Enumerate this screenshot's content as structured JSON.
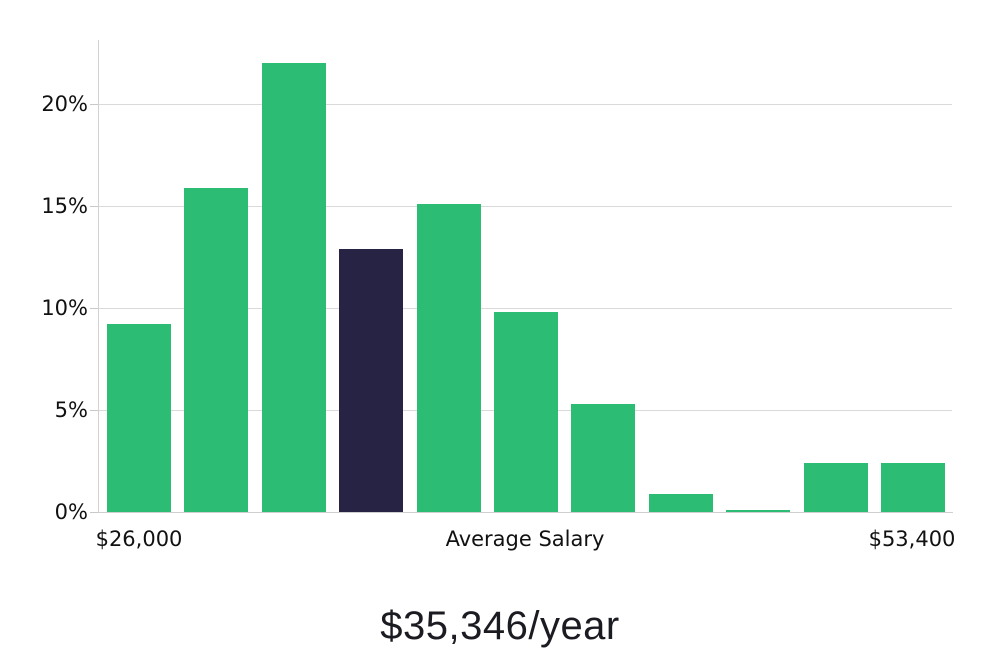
{
  "page": {
    "background": "#ffffff"
  },
  "chart_data": {
    "type": "bar",
    "subtype": "histogram",
    "title": "$35,346/year",
    "xlabel": "",
    "ylabel": "",
    "x_axis_labels": {
      "left": "$26,000",
      "center": "Average Salary",
      "right": "$53,400"
    },
    "y_ticks": [
      {
        "value": 0,
        "label": "0%"
      },
      {
        "value": 5,
        "label": "5%"
      },
      {
        "value": 10,
        "label": "10%"
      },
      {
        "value": 15,
        "label": "15%"
      },
      {
        "value": 20,
        "label": "20%"
      }
    ],
    "ylim": [
      0,
      23.1
    ],
    "values": [
      9.2,
      15.9,
      22.0,
      12.9,
      15.1,
      9.8,
      5.3,
      0.9,
      0.1,
      2.4,
      2.4
    ],
    "highlighted_bar_index": 3,
    "grid": true,
    "legend": false,
    "colors": {
      "bar": "#2dbc74",
      "highlighted_bar": "#272345",
      "gridline": "#dadada",
      "axis_line": "#cfcfcf",
      "text": "#111111",
      "title_text": "#1b1b22"
    }
  }
}
